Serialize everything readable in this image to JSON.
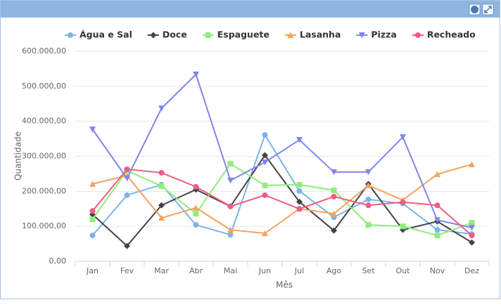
{
  "chart_data": {
    "type": "line",
    "x_label": "Mês",
    "y_label": "Quantidade",
    "categories": [
      "Jan",
      "Fev",
      "Mar",
      "Abr",
      "Mai",
      "Jun",
      "Jul",
      "Ago",
      "Set",
      "Out",
      "Nov",
      "Dez"
    ],
    "series": [
      {
        "name": "Água e Sal",
        "color": "#7cb5ec",
        "symbol": "circle",
        "values": [
          74000,
          189000,
          219000,
          104000,
          76000,
          361000,
          201000,
          126000,
          177000,
          165000,
          90000,
          78000
        ]
      },
      {
        "name": "Doce",
        "color": "#434348",
        "symbol": "diamond",
        "values": [
          134000,
          44000,
          160000,
          205000,
          157000,
          303000,
          170000,
          88000,
          221000,
          90000,
          114000,
          54000
        ]
      },
      {
        "name": "Espaguete",
        "color": "#90ed7d",
        "symbol": "square",
        "values": [
          120000,
          259000,
          215000,
          136000,
          279000,
          217000,
          219000,
          203000,
          104000,
          100000,
          74000,
          110000
        ]
      },
      {
        "name": "Lasanha",
        "color": "#f7a35c",
        "symbol": "triangle",
        "values": [
          221000,
          245000,
          124000,
          153000,
          90000,
          80000,
          150000,
          136000,
          217000,
          175000,
          249000,
          277000
        ]
      },
      {
        "name": "Pizza",
        "color": "#8085e9",
        "symbol": "triangle-down",
        "values": [
          377000,
          237000,
          437000,
          534000,
          231000,
          283000,
          347000,
          255000,
          255000,
          355000,
          118000,
          96000
        ]
      },
      {
        "name": "Recheado",
        "color": "#f15c80",
        "symbol": "circle",
        "values": [
          144000,
          263000,
          253000,
          213000,
          157000,
          189000,
          150000,
          185000,
          160000,
          169000,
          160000,
          74000
        ]
      }
    ],
    "ylim": [
      0,
      600000
    ],
    "yticks": [
      {
        "value": 0,
        "label": "0,00"
      },
      {
        "value": 100000,
        "label": "100.000,00"
      },
      {
        "value": 200000,
        "label": "200.000,00"
      },
      {
        "value": 300000,
        "label": "300.000,00"
      },
      {
        "value": 400000,
        "label": "400.000,00"
      },
      {
        "value": 500000,
        "label": "500.000,00"
      },
      {
        "value": 600000,
        "label": "600.000,00"
      }
    ],
    "grid": true,
    "legend": "top"
  }
}
